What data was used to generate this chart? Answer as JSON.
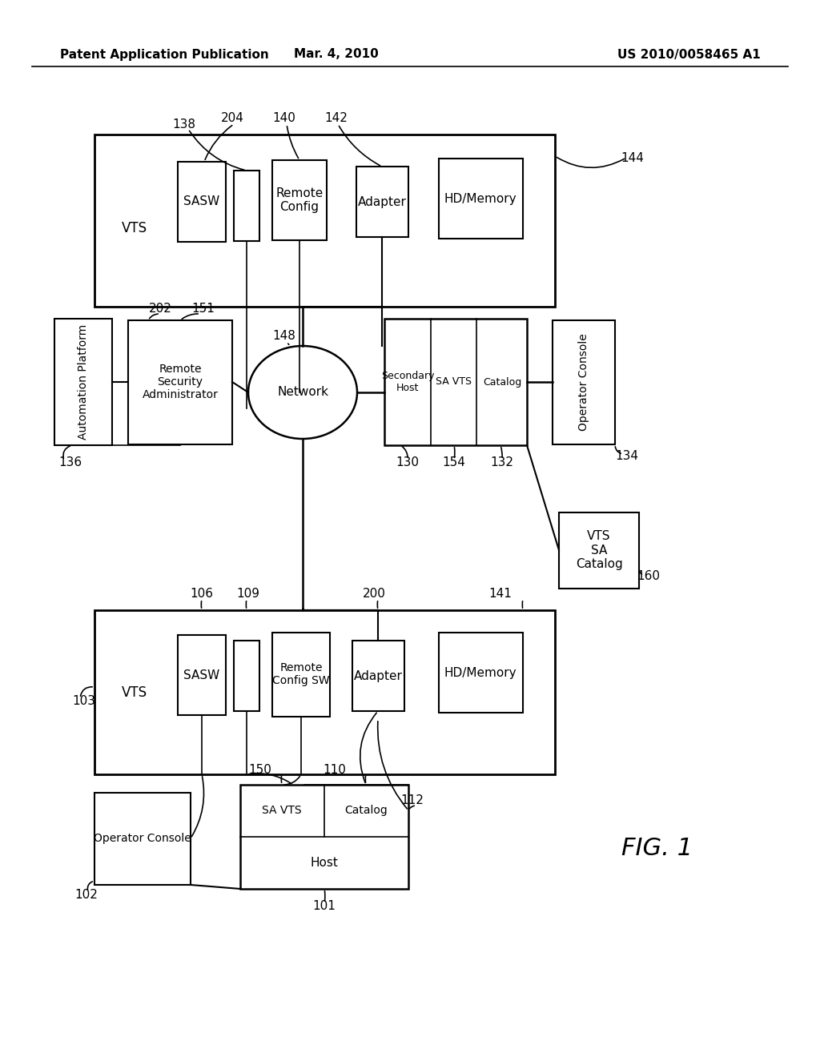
{
  "bg_color": "#ffffff",
  "header_left": "Patent Application Publication",
  "header_mid": "Mar. 4, 2010",
  "header_right": "US 2010/0058465 A1",
  "fig_label": "FIG. 1"
}
